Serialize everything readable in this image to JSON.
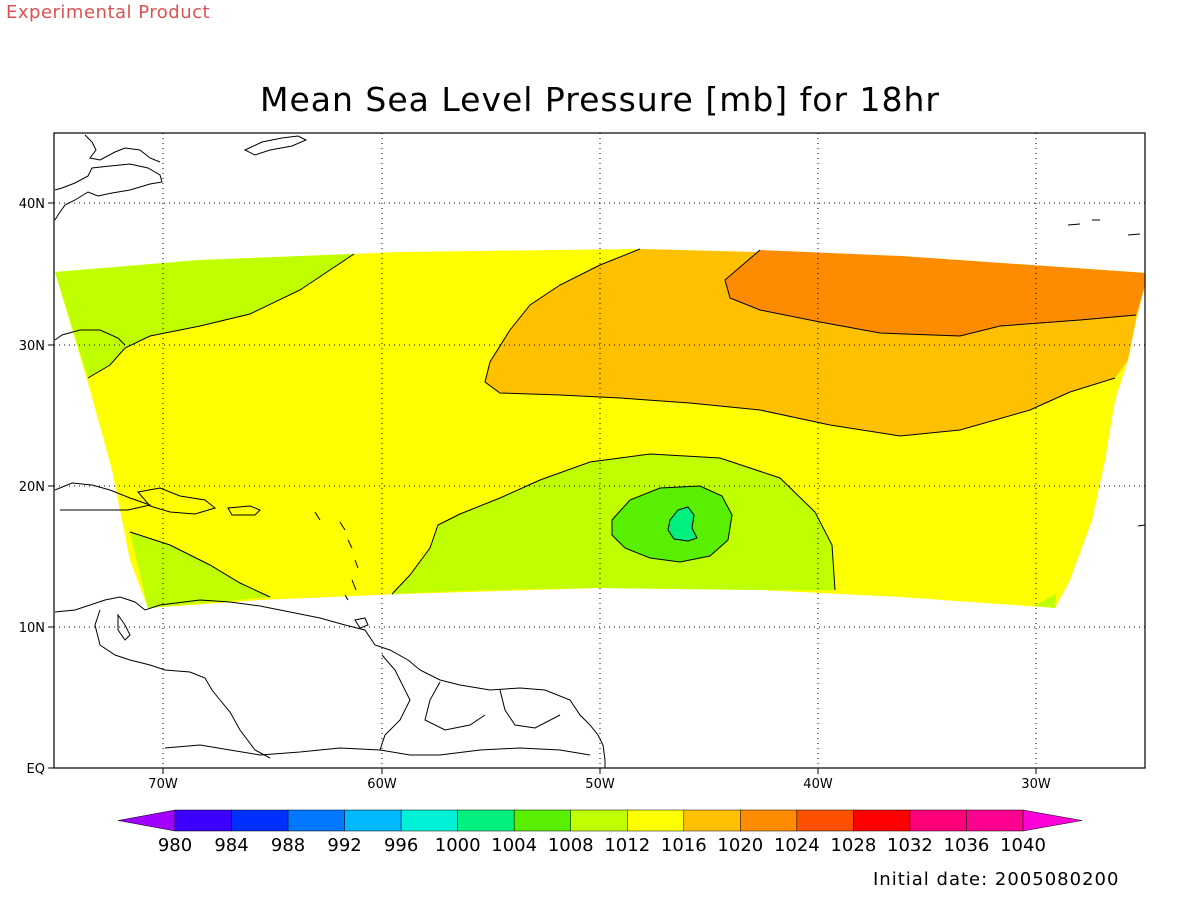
{
  "header": {
    "experimental_label": "Experimental Product",
    "title": "Mean Sea Level Pressure [mb] for 18hr"
  },
  "footer": {
    "initial_date": "Initial date: 2005080200"
  },
  "map": {
    "lon_range": [
      -75,
      -25
    ],
    "lat_range": [
      0,
      45
    ],
    "grid": "dotted",
    "lon_ticks": [
      {
        "value": -70,
        "label": "70W"
      },
      {
        "value": -60,
        "label": "60W"
      },
      {
        "value": -50,
        "label": "50W"
      },
      {
        "value": -40,
        "label": "40W"
      },
      {
        "value": -30,
        "label": "30W"
      }
    ],
    "lat_ticks": [
      {
        "value": 0,
        "label": "EQ"
      },
      {
        "value": 10,
        "label": "10N"
      },
      {
        "value": 20,
        "label": "20N"
      },
      {
        "value": 30,
        "label": "30N"
      },
      {
        "value": 40,
        "label": "40N"
      }
    ]
  },
  "colorbar": {
    "levels": [
      "980",
      "984",
      "988",
      "992",
      "996",
      "1000",
      "1004",
      "1008",
      "1012",
      "1016",
      "1020",
      "1024",
      "1028",
      "1032",
      "1036",
      "1040"
    ],
    "colors": [
      "#a000ff",
      "#3c00ff",
      "#0030ff",
      "#0078ff",
      "#00b8ff",
      "#00f0d8",
      "#00f080",
      "#58f000",
      "#c0ff00",
      "#ffff00",
      "#ffc000",
      "#ff8c00",
      "#ff5000",
      "#ff0000",
      "#ff0078",
      "#ff0090",
      "#ff00d8"
    ]
  },
  "pressure_fields": [
    {
      "name": "1012-1016",
      "color": "#ffff00"
    },
    {
      "name": "1008-1012",
      "color": "#c0ff00"
    },
    {
      "name": "1016-1020",
      "color": "#ffc000"
    },
    {
      "name": "1020-1024",
      "color": "#ff8c00"
    },
    {
      "name": "1004-1008",
      "color": "#58f000"
    },
    {
      "name": "1000-1004",
      "color": "#00f080"
    }
  ]
}
